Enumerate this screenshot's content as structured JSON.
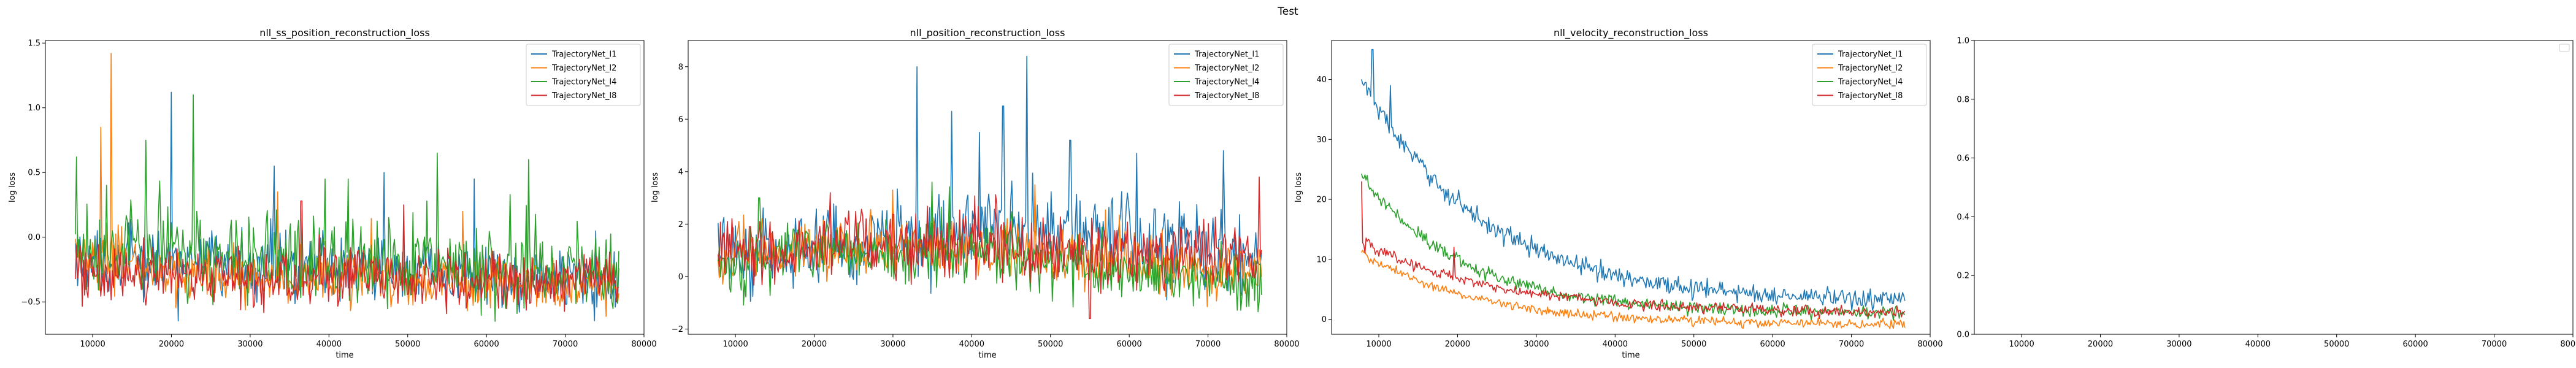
{
  "figure": {
    "suptitle": "Test"
  },
  "colors": {
    "l1": "#1f77b4",
    "l2": "#ff7f0e",
    "l4": "#2ca02c",
    "l8": "#d62728"
  },
  "chart_data": [
    {
      "type": "line",
      "title": "nll_ss_position_reconstruction_loss",
      "xlabel": "time",
      "ylabel": "log loss",
      "xlim": [
        4000,
        80000
      ],
      "ylim": [
        -0.75,
        1.52
      ],
      "xticks": [
        10000,
        20000,
        30000,
        40000,
        50000,
        60000,
        70000,
        80000
      ],
      "yticks": [
        -0.5,
        0.0,
        0.5,
        1.0,
        1.5
      ],
      "ytick_labels": [
        "−0.5",
        "0.0",
        "0.5",
        "1.0",
        "1.5"
      ],
      "x_start": 7800,
      "x_end": 76800,
      "legend": "top-right",
      "series": [
        {
          "name": "TrajectoryNet_l1",
          "color": "#1f77b4",
          "base": [
            -0.2,
            -0.2,
            -0.22,
            -0.26,
            -0.3,
            -0.32,
            -0.33
          ],
          "noise": 0.24,
          "spikes": [
            [
              20000,
              1.12
            ],
            [
              33000,
              0.55
            ],
            [
              47000,
              0.5
            ],
            [
              58500,
              0.45
            ]
          ]
        },
        {
          "name": "TrajectoryNet_l2",
          "color": "#ff7f0e",
          "base": [
            -0.15,
            -0.28,
            -0.32,
            -0.33,
            -0.34,
            -0.35,
            -0.35
          ],
          "noise": 0.2,
          "spikes": [
            [
              12300,
              1.42
            ],
            [
              11000,
              0.85
            ],
            [
              33500,
              0.35
            ],
            [
              57000,
              0.2
            ]
          ]
        },
        {
          "name": "TrajectoryNet_l4",
          "color": "#2ca02c",
          "base": [
            -0.08,
            -0.12,
            -0.16,
            -0.2,
            -0.24,
            -0.26,
            -0.27
          ],
          "noise": 0.3,
          "spikes": [
            [
              8000,
              0.62
            ],
            [
              22800,
              1.1
            ],
            [
              16800,
              0.75
            ],
            [
              53800,
              0.65
            ],
            [
              65300,
              0.6
            ],
            [
              42500,
              0.45
            ]
          ]
        },
        {
          "name": "TrajectoryNet_l8",
          "color": "#d62728",
          "base": [
            -0.28,
            -0.3,
            -0.32,
            -0.32,
            -0.33,
            -0.34,
            -0.34
          ],
          "noise": 0.2,
          "spikes": [
            [
              36500,
              0.28
            ],
            [
              49500,
              0.25
            ]
          ]
        }
      ]
    },
    {
      "type": "line",
      "title": "nll_position_reconstruction_loss",
      "xlabel": "time",
      "ylabel": "log loss",
      "xlim": [
        4000,
        80000
      ],
      "ylim": [
        -2.2,
        9.0
      ],
      "xticks": [
        10000,
        20000,
        30000,
        40000,
        50000,
        60000,
        70000,
        80000
      ],
      "yticks": [
        -2,
        0,
        2,
        4,
        6,
        8
      ],
      "ytick_labels": [
        "−2",
        "0",
        "2",
        "4",
        "6",
        "8"
      ],
      "x_start": 7800,
      "x_end": 76800,
      "legend": "top-right",
      "series": [
        {
          "name": "TrajectoryNet_l1",
          "color": "#1f77b4",
          "base": [
            0.8,
            1.1,
            1.5,
            1.9,
            1.7,
            1.1,
            0.7
          ],
          "noise": 1.4,
          "spikes": [
            [
              33000,
              8.0
            ],
            [
              47000,
              8.4
            ],
            [
              44000,
              6.5
            ],
            [
              37500,
              6.3
            ],
            [
              52500,
              5.2
            ],
            [
              61000,
              4.7
            ],
            [
              72000,
              4.8
            ],
            [
              41000,
              5.5
            ]
          ]
        },
        {
          "name": "TrajectoryNet_l2",
          "color": "#ff7f0e",
          "base": [
            0.7,
            1.0,
            1.1,
            0.9,
            0.7,
            0.4,
            0.2
          ],
          "noise": 1.0,
          "spikes": [
            [
              30000,
              3.3
            ],
            [
              48000,
              3.5
            ]
          ]
        },
        {
          "name": "TrajectoryNet_l4",
          "color": "#2ca02c",
          "base": [
            0.6,
            0.9,
            1.0,
            0.8,
            0.4,
            0.0,
            -0.3
          ],
          "noise": 1.1,
          "spikes": [
            [
              13000,
              3.0
            ],
            [
              35000,
              3.6
            ]
          ]
        },
        {
          "name": "TrajectoryNet_l8",
          "color": "#d62728",
          "base": [
            0.8,
            1.1,
            1.2,
            1.1,
            0.9,
            0.8,
            1.0
          ],
          "noise": 1.2,
          "spikes": [
            [
              55000,
              -1.6
            ],
            [
              76500,
              3.8
            ],
            [
              22000,
              3.2
            ]
          ]
        }
      ]
    },
    {
      "type": "line",
      "title": "nll_velocity_reconstruction_loss",
      "xlabel": "time",
      "ylabel": "log loss",
      "xlim": [
        4000,
        80000
      ],
      "ylim": [
        -2.5,
        46.5
      ],
      "xticks": [
        10000,
        20000,
        30000,
        40000,
        50000,
        60000,
        70000,
        80000
      ],
      "yticks": [
        0,
        10,
        20,
        30,
        40
      ],
      "ytick_labels": [
        "0",
        "10",
        "20",
        "30",
        "40"
      ],
      "x_start": 7800,
      "x_end": 76800,
      "legend": "top-right",
      "series": [
        {
          "name": "TrajectoryNet_l1",
          "color": "#1f77b4",
          "decay": {
            "a": 37,
            "b": 2.8,
            "tau": 15500
          },
          "noise": 1.6,
          "spikes": [
            [
              9200,
              45.0
            ],
            [
              8300,
              39.5
            ],
            [
              11500,
              39.0
            ]
          ]
        },
        {
          "name": "TrajectoryNet_l2",
          "color": "#ff7f0e",
          "decay": {
            "a": 12,
            "b": -1.0,
            "tau": 15000
          },
          "noise": 0.8,
          "spikes": [
            [
              8000,
              11.5
            ]
          ]
        },
        {
          "name": "TrajectoryNet_l4",
          "color": "#2ca02c",
          "decay": {
            "a": 23,
            "b": 1.0,
            "tau": 13000
          },
          "noise": 1.1,
          "spikes": [
            [
              8500,
              24.0
            ]
          ]
        },
        {
          "name": "TrajectoryNet_l8",
          "color": "#d62728",
          "decay": {
            "a": 12,
            "b": 1.0,
            "tau": 17000
          },
          "noise": 0.9,
          "spikes": [
            [
              7800,
              23.0
            ],
            [
              8200,
              11.0
            ],
            [
              19500,
              12.0
            ]
          ]
        }
      ]
    },
    {
      "type": "line",
      "title": "",
      "xlabel": "",
      "ylabel": "",
      "xlim": [
        4000,
        80000
      ],
      "ylim": [
        0.0,
        1.0
      ],
      "xticks": [
        10000,
        20000,
        30000,
        40000,
        50000,
        60000,
        70000,
        80000
      ],
      "yticks": [
        0.0,
        0.2,
        0.4,
        0.6,
        0.8,
        1.0
      ],
      "ytick_labels": [
        "0.0",
        "0.2",
        "0.4",
        "0.6",
        "0.8",
        "1.0"
      ],
      "legend": "top-right-empty",
      "series": []
    }
  ]
}
